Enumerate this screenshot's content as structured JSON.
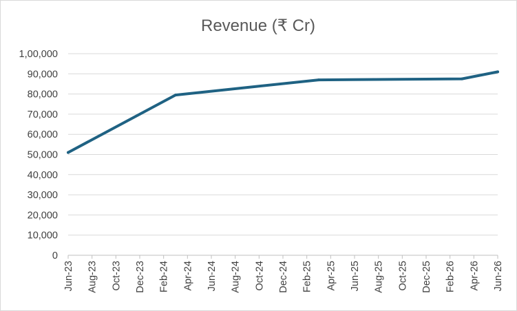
{
  "chart_data": {
    "type": "line",
    "title": "Revenue (₹ Cr)",
    "xlabel": "",
    "ylabel": "",
    "ylim": [
      0,
      100000
    ],
    "y_ticks": [
      "0",
      "10,000",
      "20,000",
      "30,000",
      "40,000",
      "50,000",
      "60,000",
      "70,000",
      "80,000",
      "90,000",
      "1,00,000"
    ],
    "x_tick_labels": [
      "Jun-23",
      "Aug-23",
      "Oct-23",
      "Dec-23",
      "Feb-24",
      "Apr-24",
      "Jun-24",
      "Aug-24",
      "Oct-24",
      "Dec-24",
      "Feb-25",
      "Apr-25",
      "Jun-25",
      "Aug-25",
      "Oct-25",
      "Dec-25",
      "Feb-26",
      "Apr-26",
      "Jun-26"
    ],
    "grid": true,
    "legend": "none",
    "color": "#1f6283",
    "series": [
      {
        "x": [
          "Jun-23",
          "Mar-24",
          "Mar-25",
          "Mar-26",
          "Jun-26"
        ],
        "values": [
          51000,
          79500,
          87000,
          87500,
          91000
        ]
      }
    ]
  }
}
